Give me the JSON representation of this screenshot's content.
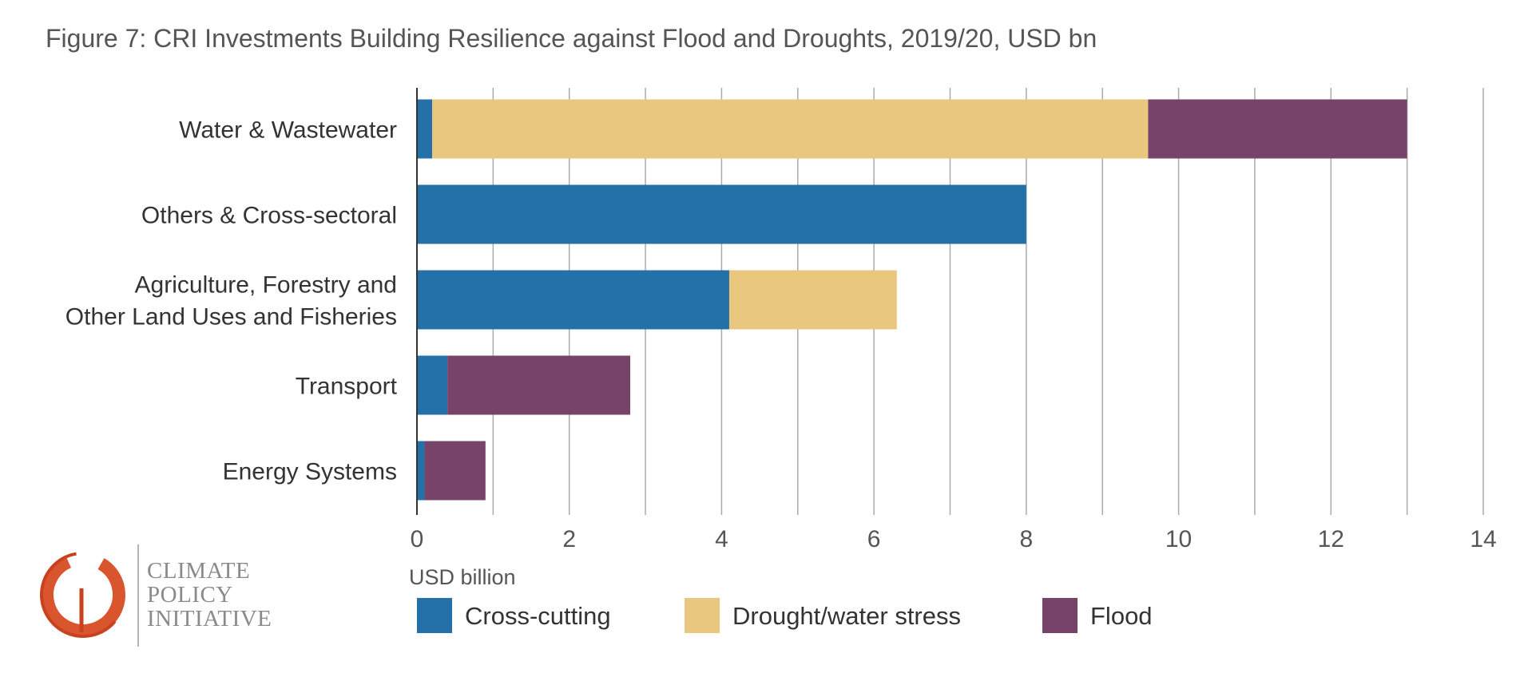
{
  "title": "Figure 7: CRI Investments Building Resilience against Flood and Droughts, 2019/20, USD bn",
  "colors": {
    "cross_cutting": "#2470a8",
    "drought": "#e9c77f",
    "flood": "#774368",
    "grid": "#aaaaaa",
    "axis": "#333333"
  },
  "chart_data": {
    "type": "bar",
    "orientation": "horizontal",
    "stacked": true,
    "title": "Figure 7: CRI Investments Building Resilience against Flood and Droughts, 2019/20, USD bn",
    "xlabel": "USD billion",
    "ylabel": "",
    "xlim": [
      0,
      14
    ],
    "xticks": [
      0,
      2,
      4,
      6,
      8,
      10,
      12,
      14
    ],
    "grid": true,
    "legend_position": "bottom",
    "categories": [
      [
        "Water & Wastewater"
      ],
      [
        "Others & Cross-sectoral"
      ],
      [
        "Agriculture, Forestry and",
        "Other Land Uses and Fisheries"
      ],
      [
        "Transport"
      ],
      [
        "Energy Systems"
      ]
    ],
    "series": [
      {
        "name": "Cross-cutting",
        "color": "#2470a8",
        "values": [
          0.2,
          8.0,
          4.1,
          0.4,
          0.1
        ]
      },
      {
        "name": "Drought/water stress",
        "color": "#e9c77f",
        "values": [
          9.4,
          0,
          2.2,
          0,
          0
        ]
      },
      {
        "name": "Flood",
        "color": "#774368",
        "values": [
          3.4,
          0,
          0,
          2.4,
          0.8
        ]
      }
    ]
  },
  "logo": {
    "lines": [
      "CLIMATE",
      "POLICY",
      "INITIATIVE"
    ]
  }
}
